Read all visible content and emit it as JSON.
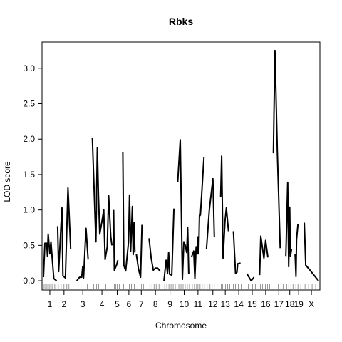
{
  "chart_data": {
    "type": "line",
    "title": "Rbks",
    "xlabel": "Chromosome",
    "ylabel": "LOD score",
    "ylim": [
      -0.13,
      3.37
    ],
    "yticks": [
      0.0,
      0.5,
      1.0,
      1.5,
      2.0,
      2.5,
      3.0
    ],
    "ytick_labels": [
      "0.0",
      "0.5",
      "1.0",
      "1.5",
      "2.0",
      "2.5",
      "3.0"
    ],
    "grid": false,
    "legend": "none",
    "line_color": "#000000",
    "chromosomes": [
      {
        "label": "1",
        "start": 0.0,
        "end": 1.0,
        "points": [
          [
            0.05,
            0.05
          ],
          [
            0.15,
            0.53
          ],
          [
            0.28,
            0.53
          ],
          [
            0.33,
            0.35
          ],
          [
            0.38,
            0.66
          ],
          [
            0.5,
            0.38
          ],
          [
            0.58,
            0.55
          ],
          [
            0.78,
            0.03
          ],
          [
            0.98,
            0.0
          ]
        ]
      },
      {
        "label": "2",
        "start": 1.0,
        "end": 2.0,
        "points": [
          [
            1.05,
            0.77
          ],
          [
            1.12,
            0.13
          ],
          [
            1.35,
            1.03
          ],
          [
            1.42,
            0.07
          ],
          [
            1.6,
            0.04
          ],
          [
            1.78,
            1.31
          ],
          [
            1.97,
            0.45
          ]
        ]
      },
      {
        "label": "3",
        "start": 2.35,
        "end": 3.3,
        "points": [
          [
            2.4,
            0.0
          ],
          [
            2.6,
            0.05
          ],
          [
            2.75,
            0.05
          ],
          [
            2.82,
            0.2
          ],
          [
            2.88,
            0.04
          ],
          [
            3.05,
            0.74
          ],
          [
            3.2,
            0.3
          ]
        ]
      },
      {
        "label": "4",
        "start": 3.45,
        "end": 4.9,
        "points": [
          [
            3.5,
            2.02
          ],
          [
            3.75,
            0.55
          ],
          [
            3.85,
            1.88
          ],
          [
            3.93,
            1.2
          ],
          [
            4.02,
            0.66
          ],
          [
            4.2,
            0.87
          ],
          [
            4.3,
            1.0
          ],
          [
            4.4,
            0.3
          ],
          [
            4.55,
            0.48
          ],
          [
            4.65,
            1.2
          ],
          [
            4.8,
            0.62
          ],
          [
            4.88,
            0.5
          ]
        ]
      },
      {
        "label": "5",
        "start": 4.95,
        "end": 5.55,
        "points": [
          [
            5.0,
            1.0
          ],
          [
            5.05,
            0.15
          ],
          [
            5.2,
            0.22
          ],
          [
            5.3,
            0.29
          ]
        ]
      },
      {
        "label": "6",
        "start": 5.6,
        "end": 6.55,
        "points": [
          [
            5.65,
            1.82
          ],
          [
            5.72,
            0.22
          ],
          [
            5.85,
            0.14
          ],
          [
            6.05,
            0.55
          ],
          [
            6.12,
            1.21
          ],
          [
            6.2,
            0.42
          ],
          [
            6.32,
            1.05
          ],
          [
            6.38,
            0.37
          ],
          [
            6.45,
            0.82
          ],
          [
            6.5,
            0.4
          ]
        ]
      },
      {
        "label": "7",
        "start": 6.55,
        "end": 7.35,
        "points": [
          [
            6.6,
            0.38
          ],
          [
            6.75,
            0.17
          ],
          [
            6.9,
            0.05
          ],
          [
            7.0,
            0.79
          ]
        ]
      },
      {
        "label": "8",
        "start": 7.45,
        "end": 8.45,
        "points": [
          [
            7.5,
            0.6
          ],
          [
            7.65,
            0.32
          ],
          [
            7.8,
            0.15
          ],
          [
            7.95,
            0.18
          ],
          [
            8.1,
            0.18
          ],
          [
            8.3,
            0.13
          ]
        ]
      },
      {
        "label": "9",
        "start": 8.5,
        "end": 9.45,
        "points": [
          [
            8.55,
            0.0
          ],
          [
            8.7,
            0.29
          ],
          [
            8.8,
            0.1
          ],
          [
            8.88,
            0.4
          ],
          [
            8.95,
            0.09
          ],
          [
            9.1,
            0.08
          ],
          [
            9.25,
            1.02
          ]
        ]
      },
      {
        "label": "10",
        "start": 9.5,
        "end": 10.45,
        "points": [
          [
            9.52,
            1.39
          ],
          [
            9.7,
            1.99
          ],
          [
            9.85,
            0.02
          ],
          [
            9.95,
            0.55
          ],
          [
            10.05,
            0.5
          ],
          [
            10.15,
            0.4
          ],
          [
            10.22,
            0.75
          ],
          [
            10.3,
            0.1
          ]
        ]
      },
      {
        "label": "11",
        "start": 10.45,
        "end": 11.45,
        "points": [
          [
            10.5,
            0.34
          ],
          [
            10.65,
            0.42
          ],
          [
            10.73,
            0.03
          ],
          [
            10.82,
            0.48
          ],
          [
            10.9,
            0.38
          ],
          [
            10.95,
            0.62
          ],
          [
            11.0,
            0.38
          ],
          [
            11.05,
            0.91
          ],
          [
            11.12,
            0.93
          ],
          [
            11.37,
            1.74
          ]
        ]
      },
      {
        "label": "12",
        "start": 11.5,
        "end": 12.5,
        "points": [
          [
            11.55,
            0.45
          ],
          [
            11.75,
            1.0
          ],
          [
            12.0,
            1.44
          ],
          [
            12.1,
            0.62
          ]
        ]
      },
      {
        "label": "13",
        "start": 12.5,
        "end": 13.25,
        "points": [
          [
            12.55,
            1.18
          ],
          [
            12.62,
            1.76
          ],
          [
            12.72,
            0.32
          ],
          [
            12.85,
            0.83
          ],
          [
            12.95,
            1.03
          ],
          [
            13.1,
            0.7
          ]
        ]
      },
      {
        "label": "14",
        "start": 13.35,
        "end": 14.3,
        "points": [
          [
            13.45,
            0.7
          ],
          [
            13.6,
            0.1
          ],
          [
            13.7,
            0.12
          ],
          [
            13.75,
            0.24
          ],
          [
            13.95,
            0.25
          ]
        ]
      },
      {
        "label": "15",
        "start": 14.35,
        "end": 15.2,
        "points": [
          [
            14.4,
            0.1
          ],
          [
            14.7,
            0.0
          ],
          [
            14.9,
            0.05
          ]
        ]
      },
      {
        "label": "16",
        "start": 15.25,
        "end": 16.2,
        "points": [
          [
            15.3,
            0.08
          ],
          [
            15.38,
            0.63
          ],
          [
            15.6,
            0.32
          ],
          [
            15.72,
            0.57
          ],
          [
            15.88,
            0.33
          ]
        ]
      },
      {
        "label": "17",
        "start": 16.2,
        "end": 17.1,
        "points": [
          [
            16.27,
            1.8
          ],
          [
            16.38,
            3.25
          ],
          [
            16.55,
            1.8
          ],
          [
            16.75,
            0.46
          ]
        ]
      },
      {
        "label": "18",
        "start": 17.1,
        "end": 17.75,
        "points": [
          [
            17.15,
            0.35
          ],
          [
            17.28,
            1.39
          ],
          [
            17.35,
            0.2
          ],
          [
            17.42,
            1.04
          ],
          [
            17.47,
            0.35
          ],
          [
            17.55,
            0.45
          ]
        ]
      },
      {
        "label": "19",
        "start": 17.75,
        "end": 18.35,
        "points": [
          [
            17.8,
            0.38
          ],
          [
            17.86,
            0.06
          ],
          [
            17.9,
            0.58
          ],
          [
            18.0,
            0.8
          ]
        ]
      },
      {
        "label": "X",
        "start": 18.4,
        "end": 19.5,
        "points": [
          [
            18.45,
            0.82
          ],
          [
            18.55,
            0.22
          ],
          [
            18.85,
            0.15
          ],
          [
            19.45,
            0.0
          ]
        ]
      }
    ],
    "markers": [
      0.1,
      0.2,
      0.3,
      0.4,
      0.5,
      0.6,
      0.7,
      0.85,
      1.1,
      1.3,
      1.5,
      1.7,
      1.85,
      2.5,
      2.7,
      2.85,
      3.0,
      3.15,
      3.6,
      3.8,
      3.95,
      4.05,
      4.25,
      4.45,
      4.6,
      4.75,
      5.05,
      5.15,
      5.25,
      5.4,
      5.7,
      5.8,
      6.0,
      6.1,
      6.25,
      6.35,
      6.45,
      6.7,
      6.85,
      6.95,
      7.1,
      7.55,
      7.7,
      7.85,
      8.0,
      8.2,
      8.6,
      8.75,
      8.9,
      9.05,
      9.2,
      9.35,
      9.6,
      9.75,
      9.9,
      10.05,
      10.2,
      10.35,
      10.55,
      10.7,
      10.85,
      10.95,
      11.1,
      11.25,
      11.4,
      11.6,
      11.8,
      11.95,
      12.1,
      12.3,
      12.6,
      12.7,
      12.9,
      13.05,
      13.2,
      13.45,
      13.6,
      13.8,
      14.0,
      14.2,
      14.5,
      14.8,
      15.0,
      15.35,
      15.5,
      15.7,
      15.85,
      16.0,
      16.3,
      16.45,
      16.6,
      16.8,
      16.95,
      17.2,
      17.35,
      17.5,
      17.65,
      17.85,
      18.0,
      18.2,
      18.5,
      18.75,
      19.0,
      19.25
    ]
  }
}
